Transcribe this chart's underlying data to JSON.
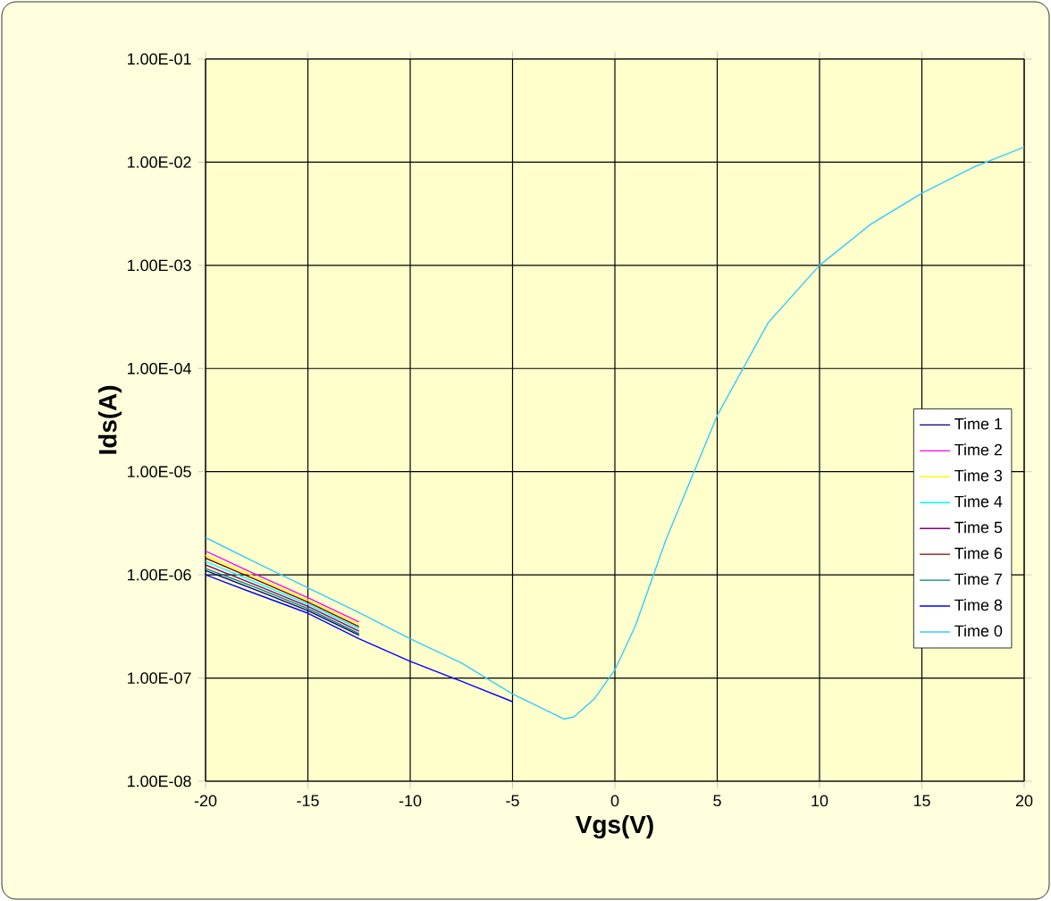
{
  "chart_data": {
    "type": "line",
    "xlabel": "Vgs(V)",
    "ylabel": "Ids(A)",
    "log": "y",
    "grid": true,
    "legend": "right",
    "marker": "none",
    "xlim": [
      -20,
      20
    ],
    "xticks": [
      -20,
      -15,
      -10,
      -5,
      0,
      5,
      10,
      15,
      20
    ],
    "ylim": [
      1e-08,
      0.1
    ],
    "yticks": [
      {
        "value": 1e-08,
        "label": "1.00E-08"
      },
      {
        "value": 1e-07,
        "label": "1.00E-07"
      },
      {
        "value": 1e-06,
        "label": "1.00E-06"
      },
      {
        "value": 1e-05,
        "label": "1.00E-05"
      },
      {
        "value": 0.0001,
        "label": "1.00E-04"
      },
      {
        "value": 0.001,
        "label": "1.00E-03"
      },
      {
        "value": 0.01,
        "label": "1.00E-02"
      },
      {
        "value": 0.1,
        "label": "1.00E-01"
      }
    ],
    "x": [
      -20,
      -17.5,
      -15,
      -12.5,
      -10,
      -7.5,
      -5,
      -3,
      -2.5,
      -2,
      -1,
      0,
      1,
      2.5,
      5,
      7.5,
      10,
      12.5,
      15,
      17.5,
      20
    ],
    "series": [
      {
        "name": "Time 1",
        "color": "#000080",
        "values": [
          1.1e-06,
          7.1e-07,
          4.5e-07,
          2.6e-07,
          null,
          null,
          null,
          null,
          null,
          null,
          null,
          null,
          null,
          null,
          null,
          null,
          null,
          null,
          null,
          null,
          null
        ]
      },
      {
        "name": "Time 2",
        "color": "#ff00ff",
        "values": [
          1.7e-06,
          1e-06,
          6e-07,
          3.5e-07,
          null,
          null,
          null,
          null,
          null,
          null,
          null,
          null,
          null,
          null,
          null,
          null,
          null,
          null,
          null,
          null,
          null
        ]
      },
      {
        "name": "Time 3",
        "color": "#ffff00",
        "values": [
          1.55e-06,
          9.4e-07,
          5.7e-07,
          3.3e-07,
          null,
          null,
          null,
          null,
          null,
          null,
          null,
          null,
          null,
          null,
          null,
          null,
          null,
          null,
          null,
          null,
          null
        ]
      },
      {
        "name": "Time 4",
        "color": "#00ffff",
        "values": [
          1.35e-06,
          8.4e-07,
          5.2e-07,
          3e-07,
          null,
          null,
          null,
          null,
          null,
          null,
          null,
          null,
          null,
          null,
          null,
          null,
          null,
          null,
          null,
          null,
          null
        ]
      },
      {
        "name": "Time 5",
        "color": "#800080",
        "values": [
          1.25e-06,
          7.9e-07,
          4.95e-07,
          2.85e-07,
          null,
          null,
          null,
          null,
          null,
          null,
          null,
          null,
          null,
          null,
          null,
          null,
          null,
          null,
          null,
          null,
          null
        ]
      },
      {
        "name": "Time 6",
        "color": "#800000",
        "values": [
          1.45e-06,
          8.9e-07,
          5.45e-07,
          3.15e-07,
          null,
          null,
          null,
          null,
          null,
          null,
          null,
          null,
          null,
          null,
          null,
          null,
          null,
          null,
          null,
          null,
          null
        ]
      },
      {
        "name": "Time 7",
        "color": "#008080",
        "values": [
          1.15e-06,
          7.5e-07,
          4.7e-07,
          2.7e-07,
          null,
          null,
          null,
          null,
          null,
          null,
          null,
          null,
          null,
          null,
          null,
          null,
          null,
          null,
          null,
          null,
          null
        ]
      },
      {
        "name": "Time 8",
        "color": "#0000ff",
        "values": [
          1e-06,
          6.5e-07,
          4.25e-07,
          2.4e-07,
          1.45e-07,
          9.3e-08,
          5.9e-08,
          null,
          null,
          null,
          null,
          null,
          null,
          null,
          null,
          null,
          null,
          null,
          null,
          null,
          null
        ]
      },
      {
        "name": "Time 0",
        "color": "#33ccff",
        "values": [
          2.3e-06,
          1.3e-06,
          7.5e-07,
          4.3e-07,
          2.4e-07,
          1.4e-07,
          7e-08,
          4.5e-08,
          4e-08,
          4.2e-08,
          6.3e-08,
          1.2e-07,
          3.2e-07,
          2.2e-06,
          3.5e-05,
          0.00028,
          0.001,
          0.0025,
          0.005,
          0.0089,
          0.014
        ]
      }
    ]
  }
}
